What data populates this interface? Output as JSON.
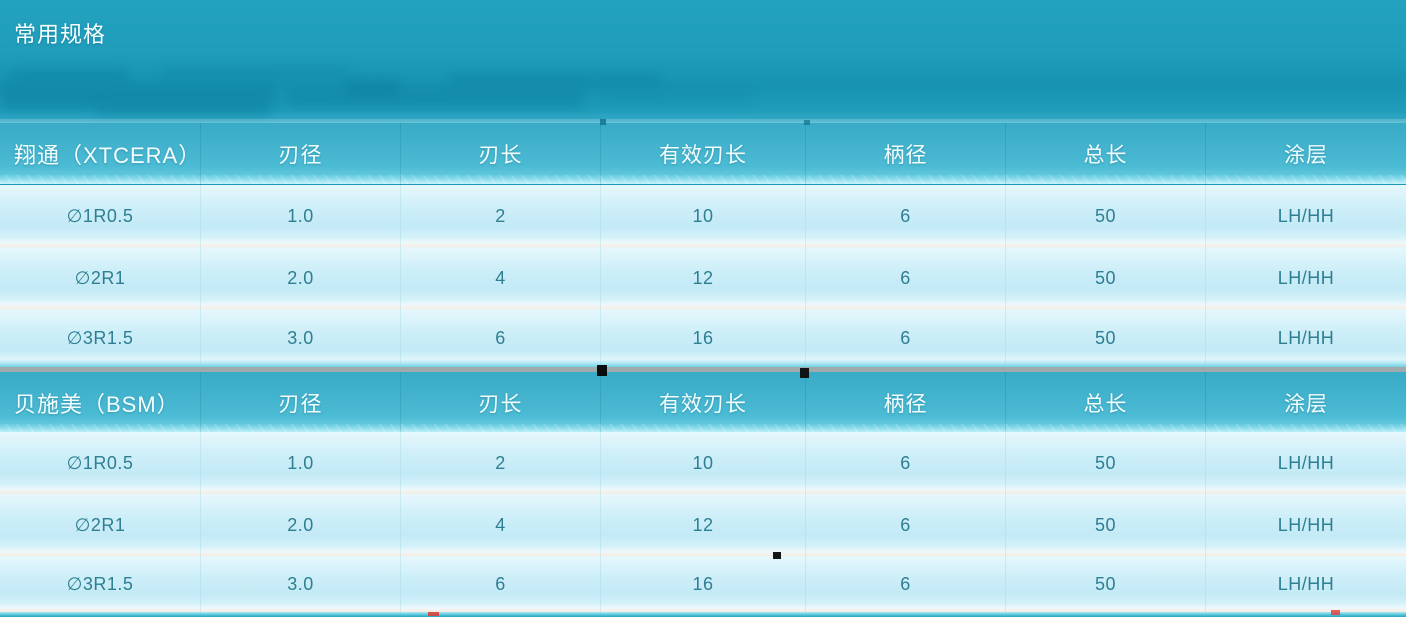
{
  "title": "常用规格",
  "tables": [
    {
      "brand": "翔通（XTCERA）",
      "header": [
        "翔通（XTCERA）",
        "刃径",
        "刃长",
        "有效刃长",
        "柄径",
        "总长",
        "涂层"
      ],
      "rows": [
        [
          "∅1R0.5",
          "1.0",
          "2",
          "10",
          "6",
          "50",
          "LH/HH"
        ],
        [
          "∅2R1",
          "2.0",
          "4",
          "12",
          "6",
          "50",
          "LH/HH"
        ],
        [
          "∅3R1.5",
          "3.0",
          "6",
          "16",
          "6",
          "50",
          "LH/HH"
        ]
      ]
    },
    {
      "brand": "贝施美（BSM）",
      "header": [
        "贝施美（BSM）",
        "刃径",
        "刃长",
        "有效刃长",
        "柄径",
        "总长",
        "涂层"
      ],
      "rows": [
        [
          "∅1R0.5",
          "1.0",
          "2",
          "10",
          "6",
          "50",
          "LH/HH"
        ],
        [
          "∅2R1",
          "2.0",
          "4",
          "12",
          "6",
          "50",
          "LH/HH"
        ],
        [
          "∅3R1.5",
          "3.0",
          "6",
          "16",
          "6",
          "50",
          "LH/HH"
        ]
      ]
    }
  ],
  "colors": {
    "background_teal": "#1e9bb9",
    "header_teal_top": "#38abc7",
    "header_teal_bottom": "#8cdcec",
    "row_cyan": "#c9edf8",
    "row_separator_warm": "#f1ebe4",
    "header_text": "#f4feff",
    "data_text": "#2d7f91",
    "gray_divider": "#a0aaad"
  }
}
